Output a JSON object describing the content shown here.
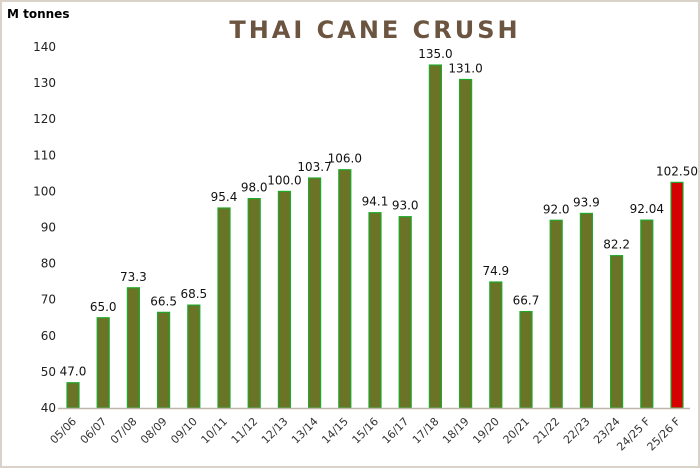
{
  "chart_data": {
    "type": "bar",
    "title": "THAI CANE CRUSH",
    "ylabel": "M tonnes",
    "xlabel": "",
    "ylim": [
      40,
      140
    ],
    "yticks": [
      40,
      50,
      60,
      70,
      80,
      90,
      100,
      110,
      120,
      130,
      140
    ],
    "grid": false,
    "categories": [
      "05/06",
      "06/07",
      "07/08",
      "08/09",
      "09/10",
      "10/11",
      "11/12",
      "12/13",
      "13/14",
      "14/15",
      "15/16",
      "16/17",
      "17/18",
      "18/19",
      "19/20",
      "20/21",
      "21/22",
      "22/23",
      "23/24",
      "24/25 F",
      "25/26 F"
    ],
    "values": [
      47.0,
      65.0,
      73.3,
      66.5,
      68.5,
      95.4,
      98.0,
      100.0,
      103.7,
      106.0,
      94.1,
      93.0,
      135.0,
      131.0,
      74.9,
      66.7,
      92.0,
      93.9,
      82.2,
      92.04,
      102.5
    ],
    "labels": [
      "47.0",
      "65.0",
      "73.3",
      "66.5",
      "68.5",
      "95.4",
      "98.0",
      "100.0",
      "103.7",
      "106.0",
      "94.1",
      "93.0",
      "135.0",
      "131.0",
      "74.9",
      "66.7",
      "92.0",
      "93.9",
      "82.2",
      "92.04",
      "102.50"
    ],
    "colors": {
      "bar": "#6b7326",
      "bar_border": "#1fa82a",
      "highlight": "#d60000",
      "axis": "#bfb5aa",
      "title": "#6b5440"
    },
    "highlight_index": 20
  }
}
